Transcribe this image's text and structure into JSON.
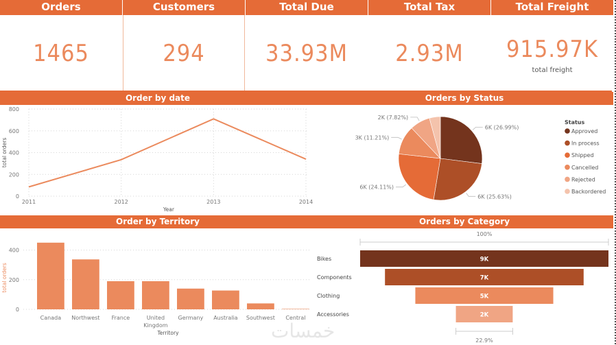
{
  "kpis": [
    {
      "title": "Orders",
      "value": "1465"
    },
    {
      "title": "Customers",
      "value": "294"
    },
    {
      "title": "Total Due",
      "value": "33.93M"
    },
    {
      "title": "Total Tax",
      "value": "2.93M"
    },
    {
      "title": "Total Freight",
      "value": "915.97K",
      "subtitle": "total freight"
    }
  ],
  "colors": {
    "header": "#e56b37",
    "kpi_value": "#eb8a5d",
    "bar": "#eb8a5d",
    "line": "#eb8a5d"
  },
  "watermark": "خمسات",
  "chart_data": [
    {
      "type": "line",
      "title": "Order by date",
      "xlabel": "Year",
      "ylabel": "total orders",
      "x": [
        "2011",
        "2012",
        "2013",
        "2014"
      ],
      "values": [
        85,
        335,
        710,
        340
      ],
      "ylim": [
        0,
        800
      ],
      "yticks": [
        "0",
        "200",
        "400",
        "600",
        "800"
      ],
      "grid": true
    },
    {
      "type": "pie",
      "title": "Orders by Status",
      "legend_title": "Status",
      "legend_position": "right",
      "slices": [
        {
          "name": "Approved",
          "percent": 26.99,
          "label": "6K (26.99%)",
          "color": "#74341d"
        },
        {
          "name": "In process",
          "percent": 25.63,
          "label": "6K (25.63%)",
          "color": "#ad4f27"
        },
        {
          "name": "Shipped",
          "percent": 24.11,
          "label": "6K (24.11%)",
          "color": "#e56b37"
        },
        {
          "name": "Cancelled",
          "percent": 11.21,
          "label": "3K (11.21%)",
          "color": "#eb8a5d"
        },
        {
          "name": "Rejected",
          "percent": 7.82,
          "label": "2K (7.82%)",
          "color": "#f0a584"
        },
        {
          "name": "Backordered",
          "percent": 4.24,
          "label": "",
          "color": "#f4c3ac"
        }
      ]
    },
    {
      "type": "bar",
      "title": "Order by Territory",
      "xlabel": "Territory",
      "ylabel": "total orders",
      "categories": [
        "Canada",
        "Northwest",
        "France",
        "United Kingdom",
        "Germany",
        "Australia",
        "Southwest",
        "Central"
      ],
      "category_lines": [
        [
          "Canada"
        ],
        [
          "Northwest"
        ],
        [
          "France"
        ],
        [
          "United",
          "Kingdom"
        ],
        [
          "Germany"
        ],
        [
          "Australia"
        ],
        [
          "Southwest"
        ],
        [
          "Central"
        ]
      ],
      "values": [
        450,
        337,
        190,
        190,
        140,
        127,
        40,
        5
      ],
      "ylim": [
        0,
        500
      ],
      "yticks": [
        "0",
        "200",
        "400"
      ],
      "grid": true
    },
    {
      "type": "funnel",
      "title": "Orders by Category",
      "categories": [
        "Bikes",
        "Components",
        "Clothing",
        "Accessories"
      ],
      "values": [
        9000,
        7200,
        5000,
        2060
      ],
      "labels": [
        "9K",
        "7K",
        "5K",
        "2K"
      ],
      "colors": [
        "#74341d",
        "#ad4f27",
        "#eb8a5d",
        "#f0a584"
      ],
      "top_percent_label": "100%",
      "bottom_percent_label": "22.9%"
    }
  ]
}
